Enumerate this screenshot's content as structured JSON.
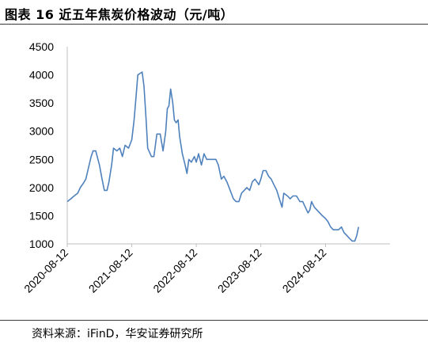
{
  "header": {
    "title": "图表 16  近五年焦炭价格波动（元/吨）"
  },
  "footer": {
    "source": "资料来源：iFinD，华安证券研究所"
  },
  "chart_data": {
    "type": "line",
    "ylim": [
      1000,
      4500
    ],
    "yticks": [
      1000,
      1500,
      2000,
      2500,
      3000,
      3500,
      4000,
      4500
    ],
    "xlim": [
      "2020-08-12",
      "2025-08-12"
    ],
    "xticks": [
      "2020-08-12",
      "2021-08-12",
      "2022-08-12",
      "2023-08-12",
      "2024-08-12"
    ],
    "grid": false,
    "series": [
      {
        "color": "#4f81bd",
        "points": [
          [
            "2020-08-12",
            1750
          ],
          [
            "2020-09-01",
            1800
          ],
          [
            "2020-09-20",
            1850
          ],
          [
            "2020-10-10",
            1900
          ],
          [
            "2020-10-25",
            2000
          ],
          [
            "2020-11-10",
            2070
          ],
          [
            "2020-11-25",
            2150
          ],
          [
            "2020-12-10",
            2350
          ],
          [
            "2020-12-25",
            2550
          ],
          [
            "2021-01-05",
            2650
          ],
          [
            "2021-01-20",
            2650
          ],
          [
            "2021-02-10",
            2400
          ],
          [
            "2021-02-25",
            2150
          ],
          [
            "2021-03-10",
            1950
          ],
          [
            "2021-03-25",
            1950
          ],
          [
            "2021-04-05",
            2100
          ],
          [
            "2021-04-20",
            2400
          ],
          [
            "2021-05-01",
            2700
          ],
          [
            "2021-05-20",
            2650
          ],
          [
            "2021-06-05",
            2700
          ],
          [
            "2021-06-20",
            2550
          ],
          [
            "2021-07-05",
            2750
          ],
          [
            "2021-07-25",
            2700
          ],
          [
            "2021-08-12",
            2850
          ],
          [
            "2021-08-25",
            3200
          ],
          [
            "2021-09-05",
            3600
          ],
          [
            "2021-09-15",
            4000
          ],
          [
            "2021-10-10",
            4050
          ],
          [
            "2021-10-20",
            3800
          ],
          [
            "2021-11-01",
            3200
          ],
          [
            "2021-11-10",
            2700
          ],
          [
            "2021-12-01",
            2550
          ],
          [
            "2021-12-15",
            2550
          ],
          [
            "2022-01-01",
            2950
          ],
          [
            "2022-01-20",
            2950
          ],
          [
            "2022-02-05",
            2650
          ],
          [
            "2022-02-20",
            3000
          ],
          [
            "2022-03-01",
            3400
          ],
          [
            "2022-03-10",
            3450
          ],
          [
            "2022-03-20",
            3750
          ],
          [
            "2022-04-01",
            3500
          ],
          [
            "2022-04-10",
            3200
          ],
          [
            "2022-04-20",
            3150
          ],
          [
            "2022-05-01",
            3200
          ],
          [
            "2022-05-10",
            2900
          ],
          [
            "2022-05-25",
            2600
          ],
          [
            "2022-06-10",
            2400
          ],
          [
            "2022-06-20",
            2250
          ],
          [
            "2022-07-01",
            2500
          ],
          [
            "2022-07-15",
            2450
          ],
          [
            "2022-08-01",
            2550
          ],
          [
            "2022-08-12",
            2450
          ],
          [
            "2022-08-25",
            2600
          ],
          [
            "2022-09-10",
            2400
          ],
          [
            "2022-09-25",
            2600
          ],
          [
            "2022-10-10",
            2500
          ],
          [
            "2022-10-25",
            2500
          ],
          [
            "2022-11-10",
            2500
          ],
          [
            "2022-12-01",
            2500
          ],
          [
            "2022-12-15",
            2400
          ],
          [
            "2023-01-01",
            2150
          ],
          [
            "2023-01-15",
            2200
          ],
          [
            "2023-02-01",
            2100
          ],
          [
            "2023-02-20",
            1950
          ],
          [
            "2023-03-10",
            1800
          ],
          [
            "2023-03-25",
            1750
          ],
          [
            "2023-04-10",
            1750
          ],
          [
            "2023-04-25",
            1900
          ],
          [
            "2023-05-10",
            1950
          ],
          [
            "2023-05-25",
            2000
          ],
          [
            "2023-06-10",
            1950
          ],
          [
            "2023-06-25",
            2100
          ],
          [
            "2023-07-10",
            2150
          ],
          [
            "2023-08-01",
            2050
          ],
          [
            "2023-08-12",
            2150
          ],
          [
            "2023-08-25",
            2300
          ],
          [
            "2023-09-10",
            2300
          ],
          [
            "2023-09-25",
            2200
          ],
          [
            "2023-10-10",
            2150
          ],
          [
            "2023-10-25",
            2050
          ],
          [
            "2023-11-10",
            1950
          ],
          [
            "2023-11-25",
            1800
          ],
          [
            "2023-12-10",
            1650
          ],
          [
            "2023-12-20",
            1900
          ],
          [
            "2024-01-10",
            1850
          ],
          [
            "2024-01-25",
            1800
          ],
          [
            "2024-02-10",
            1850
          ],
          [
            "2024-03-01",
            1850
          ],
          [
            "2024-03-20",
            1750
          ],
          [
            "2024-04-05",
            1750
          ],
          [
            "2024-04-20",
            1650
          ],
          [
            "2024-05-05",
            1550
          ],
          [
            "2024-05-15",
            1600
          ],
          [
            "2024-05-25",
            1750
          ],
          [
            "2024-06-10",
            1650
          ],
          [
            "2024-06-25",
            1600
          ],
          [
            "2024-07-10",
            1550
          ],
          [
            "2024-07-25",
            1500
          ],
          [
            "2024-08-12",
            1450
          ],
          [
            "2024-08-25",
            1400
          ],
          [
            "2024-09-10",
            1300
          ],
          [
            "2024-09-25",
            1250
          ],
          [
            "2024-10-10",
            1250
          ],
          [
            "2024-10-25",
            1250
          ],
          [
            "2024-11-10",
            1300
          ],
          [
            "2024-11-25",
            1200
          ],
          [
            "2024-12-10",
            1150
          ],
          [
            "2024-12-25",
            1100
          ],
          [
            "2025-01-10",
            1050
          ],
          [
            "2025-01-25",
            1050
          ],
          [
            "2025-02-05",
            1150
          ],
          [
            "2025-02-15",
            1300
          ]
        ]
      }
    ]
  }
}
